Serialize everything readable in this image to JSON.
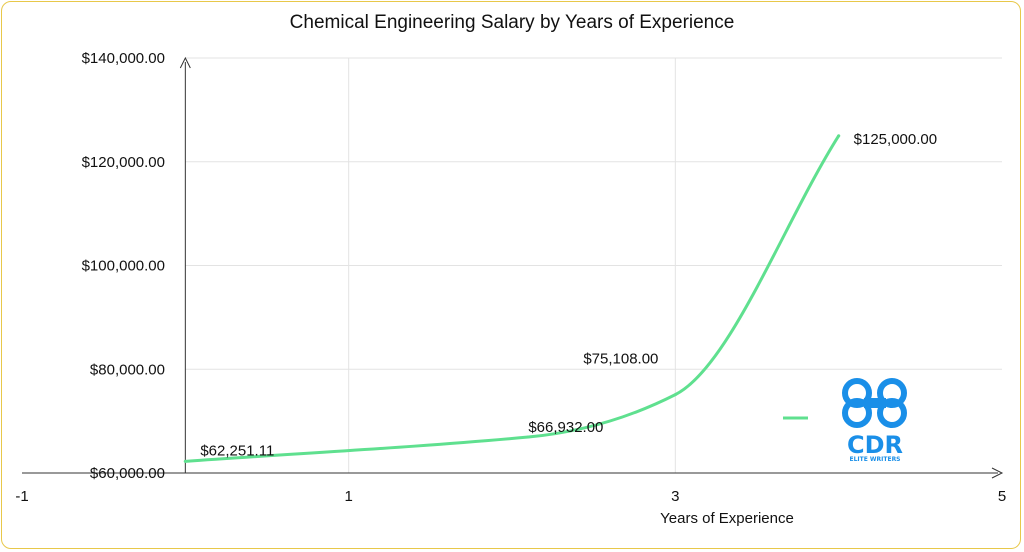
{
  "chart_data": {
    "type": "line",
    "title": "Chemical Engineering Salary by Years of Experience",
    "xlabel": "Years of Experience",
    "ylabel": "",
    "xlim": [
      -1,
      5
    ],
    "ylim": [
      60000,
      140000
    ],
    "x_ticks": [
      "-1",
      "1",
      "3",
      "5"
    ],
    "x_tick_values": [
      -1,
      1,
      3,
      5
    ],
    "y_ticks": [
      "$60,000.00",
      "$80,000.00",
      "$100,000.00",
      "$120,000.00",
      "$140,000.00"
    ],
    "y_tick_values": [
      60000,
      80000,
      100000,
      120000,
      140000
    ],
    "grid": true,
    "smooth": true,
    "series": [
      {
        "color": "#5fe08f",
        "x": [
          0,
          2.1,
          3,
          4
        ],
        "y": [
          62251.11,
          66932,
          75108,
          125000
        ],
        "labels": [
          "$62,251.11",
          "$66,932.00",
          "$75,108.00",
          "$125,000.00"
        ]
      }
    ]
  },
  "logo": {
    "mark": "CDR",
    "tagline": "ELITE WRITERS",
    "color": "#1a8fe8"
  }
}
